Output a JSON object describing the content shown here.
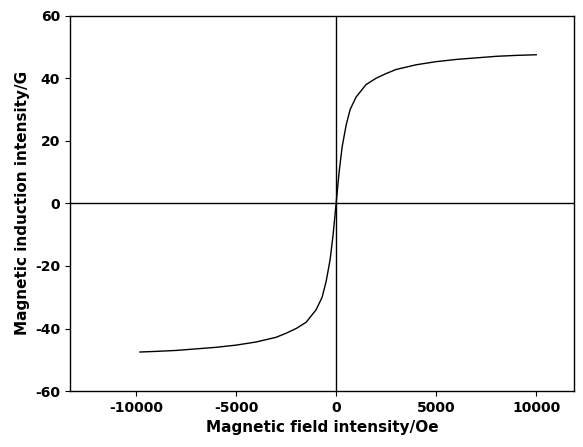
{
  "chart_data": {
    "type": "line",
    "x_label": "Magnetic field intensity/Oe",
    "y_label": "Magnetic induction intensity/G",
    "x": [
      -9800,
      -9000,
      -8000,
      -7000,
      -6000,
      -5000,
      -4000,
      -3000,
      -2500,
      -2000,
      -1500,
      -1000,
      -700,
      -500,
      -300,
      -150,
      0,
      150,
      300,
      500,
      700,
      1000,
      1500,
      2000,
      2500,
      3000,
      4000,
      5000,
      6000,
      7000,
      8000,
      9000,
      10000
    ],
    "values": [
      -47.5,
      -47.3,
      -47.0,
      -46.5,
      -46.0,
      -45.3,
      -44.3,
      -42.8,
      -41.5,
      -40.0,
      -38.0,
      -34.0,
      -30.0,
      -25.0,
      -18.0,
      -10.0,
      0,
      10.0,
      18.0,
      25.0,
      30.0,
      34.0,
      38.0,
      40.0,
      41.5,
      42.8,
      44.3,
      45.3,
      46.0,
      46.5,
      47.0,
      47.3,
      47.5
    ],
    "color": "#000000",
    "xlim": [
      -13300,
      11900
    ],
    "xticks": [
      -10000,
      -5000,
      0,
      5000,
      10000
    ],
    "ylim": [
      -60,
      60
    ],
    "yticks": [
      -60,
      -40,
      -20,
      0,
      20,
      40,
      60
    ],
    "grid": false
  }
}
